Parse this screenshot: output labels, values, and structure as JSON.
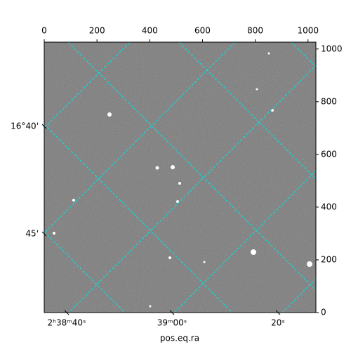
{
  "chart_data": {
    "type": "image",
    "xlabel": "pos.eq.ra",
    "xlim": [
      0,
      1030
    ],
    "ylim": [
      0,
      1026
    ],
    "xticks": [
      0,
      200,
      400,
      600,
      800,
      1000
    ],
    "yticks": [
      0,
      200,
      400,
      600,
      800,
      1000
    ],
    "wcs_xticklabels": [
      "2ʰ38ᵐ40ˢ",
      "39ᵐ00ˢ",
      "20ˢ"
    ],
    "wcs_yticklabels": [
      "16°40'",
      "45'"
    ],
    "grid_color": "#00e5e5"
  }
}
